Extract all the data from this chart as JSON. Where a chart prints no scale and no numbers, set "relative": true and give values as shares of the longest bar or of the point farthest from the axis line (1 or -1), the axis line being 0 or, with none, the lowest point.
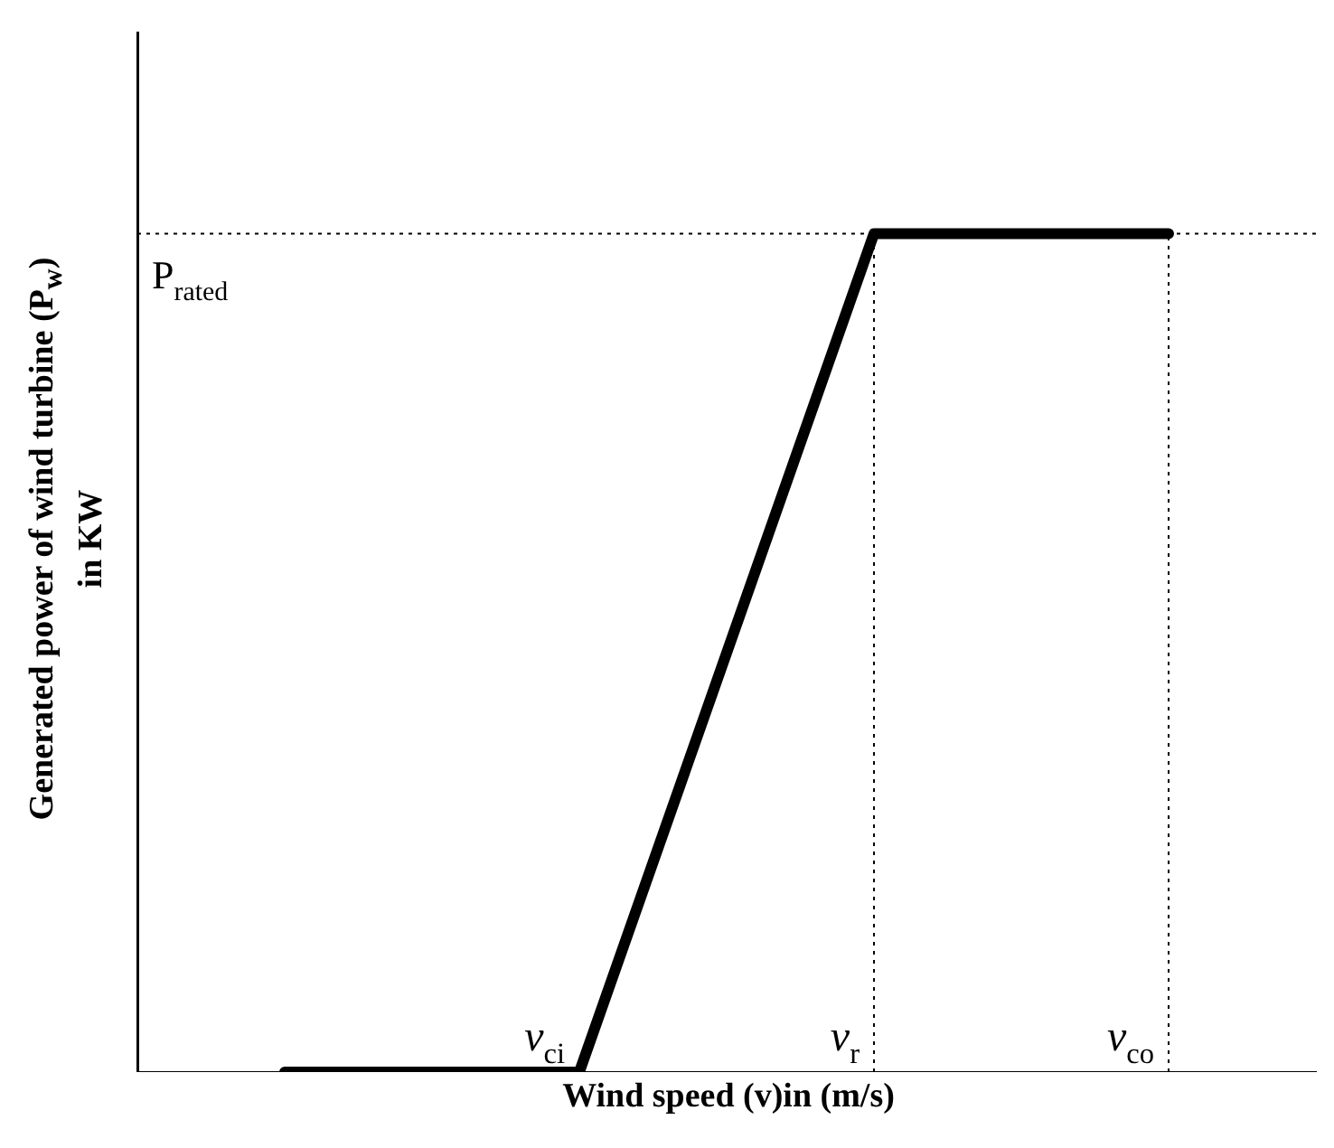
{
  "chart_data": {
    "type": "line",
    "relative": true,
    "xlabel": "Wind speed (v)in (m/s)",
    "ylabel": "Generated power of wind turbine (P$_{w}$) in KW",
    "categories": [
      null,
      "v$_{ci}$",
      "v$_{r}$",
      "v$_{co}$"
    ],
    "series": [
      {
        "color": "#000000",
        "values": [
          0,
          0,
          1,
          1
        ]
      }
    ],
    "ref_lines": [
      {
        "axis": "y",
        "value": 1,
        "label": "P$_{rated}$",
        "color": "#000000",
        "line_style": "dotted"
      },
      {
        "axis": "x",
        "value": "v$_{r}$",
        "color": "#000000",
        "line_style": "dotted"
      },
      {
        "axis": "x",
        "value": "v$_{co}$",
        "color": "#000000",
        "line_style": "dotted"
      }
    ],
    "grid": false,
    "legend": false,
    "marker": "none",
    "line_style": "solid"
  }
}
